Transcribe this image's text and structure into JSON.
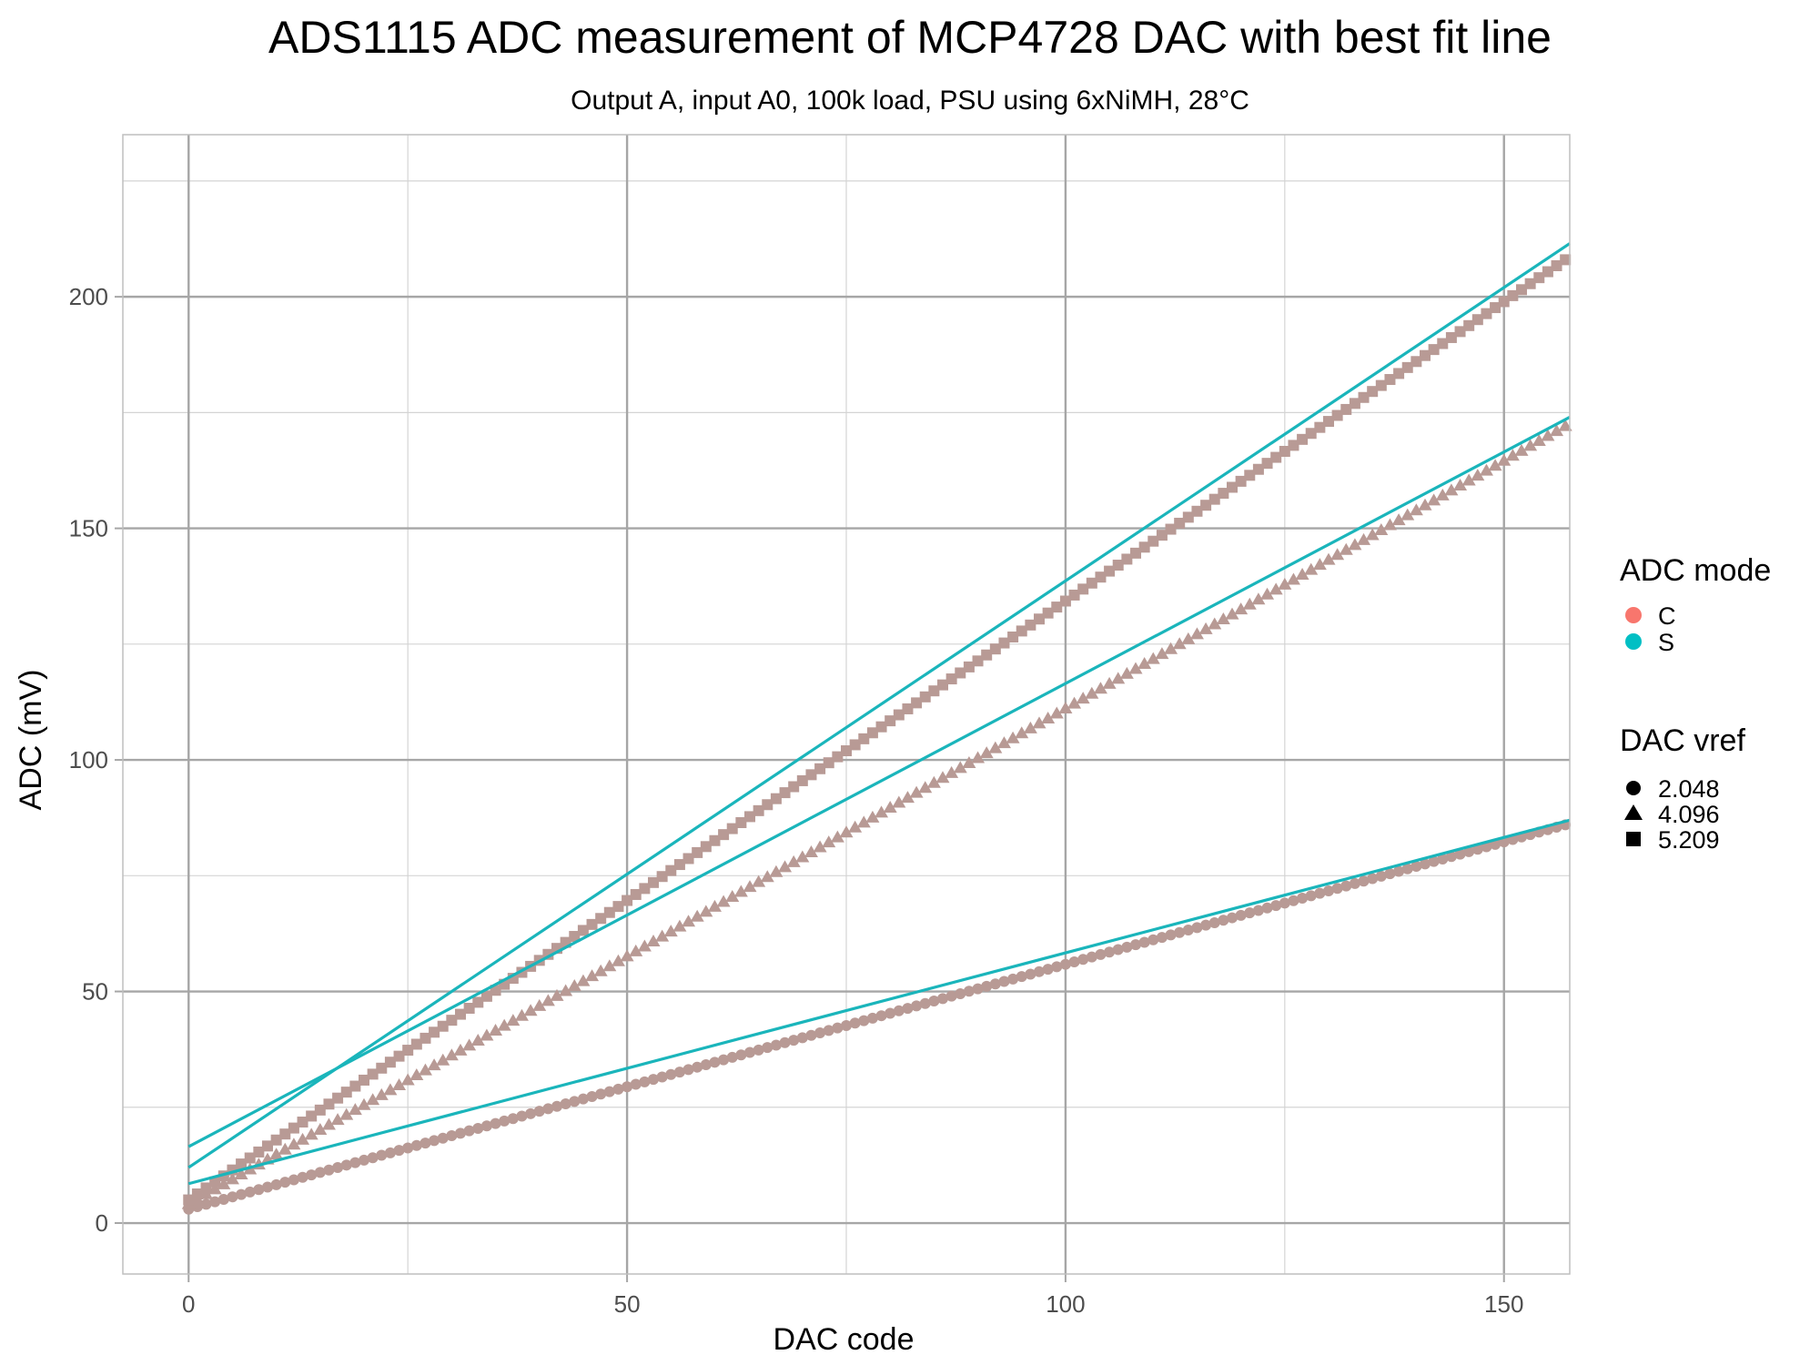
{
  "chart_data": {
    "type": "scatter",
    "title": "ADS1115 ADC measurement of MCP4728 DAC with best fit line",
    "subtitle": "Output A, input A0, 100k load, PSU using 6xNiMH, 28°C",
    "xlabel": "DAC code",
    "ylabel": "ADC (mV)",
    "xlim": [
      -7.5,
      157.5
    ],
    "ylim": [
      -11,
      235
    ],
    "x_ticks": [
      0,
      50,
      100,
      150
    ],
    "y_ticks": [
      0,
      50,
      100,
      150,
      200
    ],
    "grid": true,
    "legend_position": "right",
    "legends": {
      "color": {
        "title": "ADC mode",
        "entries": [
          {
            "label": "C",
            "color": "#F8766D"
          },
          {
            "label": "S",
            "color": "#00BFC4"
          }
        ]
      },
      "shape": {
        "title": "DAC vref",
        "entries": [
          {
            "label": "2.048",
            "shape": "circle"
          },
          {
            "label": "4.096",
            "shape": "triangle"
          },
          {
            "label": "5.209",
            "shape": "square"
          }
        ]
      }
    },
    "series": [
      {
        "adc_mode": "C",
        "vref": "2.048",
        "shape": "circle",
        "x_start": 0,
        "x_end": 157,
        "y_start": 3,
        "y_end": 86
      },
      {
        "adc_mode": "C",
        "vref": "4.096",
        "shape": "triangle",
        "x_start": 0,
        "x_end": 157,
        "y_start": 4,
        "y_end": 172
      },
      {
        "adc_mode": "C",
        "vref": "5.209",
        "shape": "square",
        "x_start": 0,
        "x_end": 157,
        "y_start": 5,
        "y_end": 208
      }
    ],
    "fit_lines": [
      {
        "adc_mode": "S",
        "vref": "2.048",
        "x": [
          0,
          157.5
        ],
        "y": [
          8.5,
          87
        ]
      },
      {
        "adc_mode": "S",
        "vref": "4.096",
        "x": [
          0,
          157.5
        ],
        "y": [
          16.5,
          174
        ]
      },
      {
        "adc_mode": "S",
        "vref": "5.209",
        "x": [
          0,
          157.5
        ],
        "y": [
          12,
          211.5
        ]
      }
    ],
    "colors": {
      "point_overlap": "#B89A95",
      "fit_line": "#1AB5BB",
      "grid_major": "#A6A6A6",
      "grid_minor": "#D4D4D4",
      "panel_border": "#BFBFBF"
    }
  }
}
